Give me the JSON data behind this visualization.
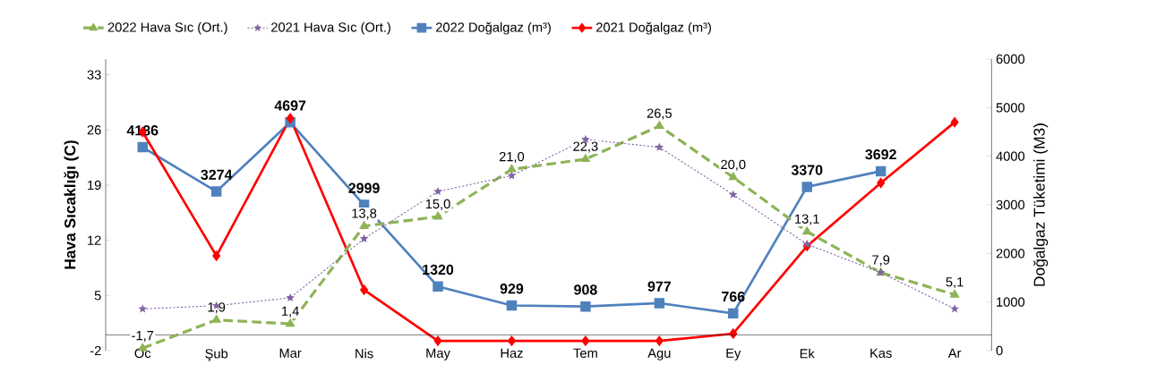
{
  "chart_data": {
    "type": "line",
    "categories": [
      "Oc",
      "Şub",
      "Mar",
      "Nis",
      "May",
      "Haz",
      "Tem",
      "Agu",
      "Ey",
      "Ek",
      "Kas",
      "Ar"
    ],
    "ylabel": "Hava Sıcaklığı (C)",
    "y2label": "Doğalgaz Tüketimi (M3)",
    "ylim": [
      -2,
      35
    ],
    "yticks": [
      -2,
      5,
      12,
      19,
      26,
      33
    ],
    "y2lim": [
      0,
      6000
    ],
    "y2ticks": [
      0,
      1000,
      2000,
      3000,
      4000,
      5000,
      6000
    ],
    "legend": "top",
    "series": [
      {
        "name": "2022 Hava Sıc (Ort.)",
        "color": "#8db356",
        "marker": "triangle",
        "line_style": "dashed",
        "values": [
          -1.7,
          1.9,
          1.4,
          13.8,
          15.0,
          21.0,
          22.3,
          26.5,
          20.0,
          13.1,
          7.9,
          5.1
        ],
        "value_labels": [
          "-1,7",
          "1,9",
          "1,4",
          "13,8",
          "15,0",
          "21,0",
          "22,3",
          "26,5",
          "20,0",
          "13,1",
          "7,9",
          "5,1"
        ]
      },
      {
        "name": "2021 Hava Sıc (Ort.)",
        "color": "#8064a2",
        "marker": "star",
        "line_style": "dotted",
        "values": [
          3.3,
          3.7,
          4.7,
          12.2,
          18.2,
          20.2,
          24.8,
          23.8,
          17.8,
          11.5,
          7.9,
          3.3
        ]
      },
      {
        "name": "2022 Doğalgaz (m³)",
        "color": "#4f81bd",
        "marker": "square",
        "line_style": "solid",
        "axis": "y2",
        "values": [
          4186,
          3274,
          4697,
          2999,
          1320,
          929,
          908,
          977,
          766,
          3370,
          3692,
          null
        ],
        "value_labels": [
          "4186",
          "3274",
          "4697",
          "2999",
          "1320",
          "929",
          "908",
          "977",
          "766",
          "3370",
          "3692",
          null
        ]
      },
      {
        "name": "2021 Doğalgaz (m³)",
        "color": "#ff0000",
        "marker": "diamond",
        "line_style": "solid",
        "axis": "y2",
        "values": [
          4500,
          1950,
          4780,
          1250,
          200,
          200,
          200,
          200,
          350,
          2150,
          3450,
          4700
        ]
      }
    ]
  }
}
